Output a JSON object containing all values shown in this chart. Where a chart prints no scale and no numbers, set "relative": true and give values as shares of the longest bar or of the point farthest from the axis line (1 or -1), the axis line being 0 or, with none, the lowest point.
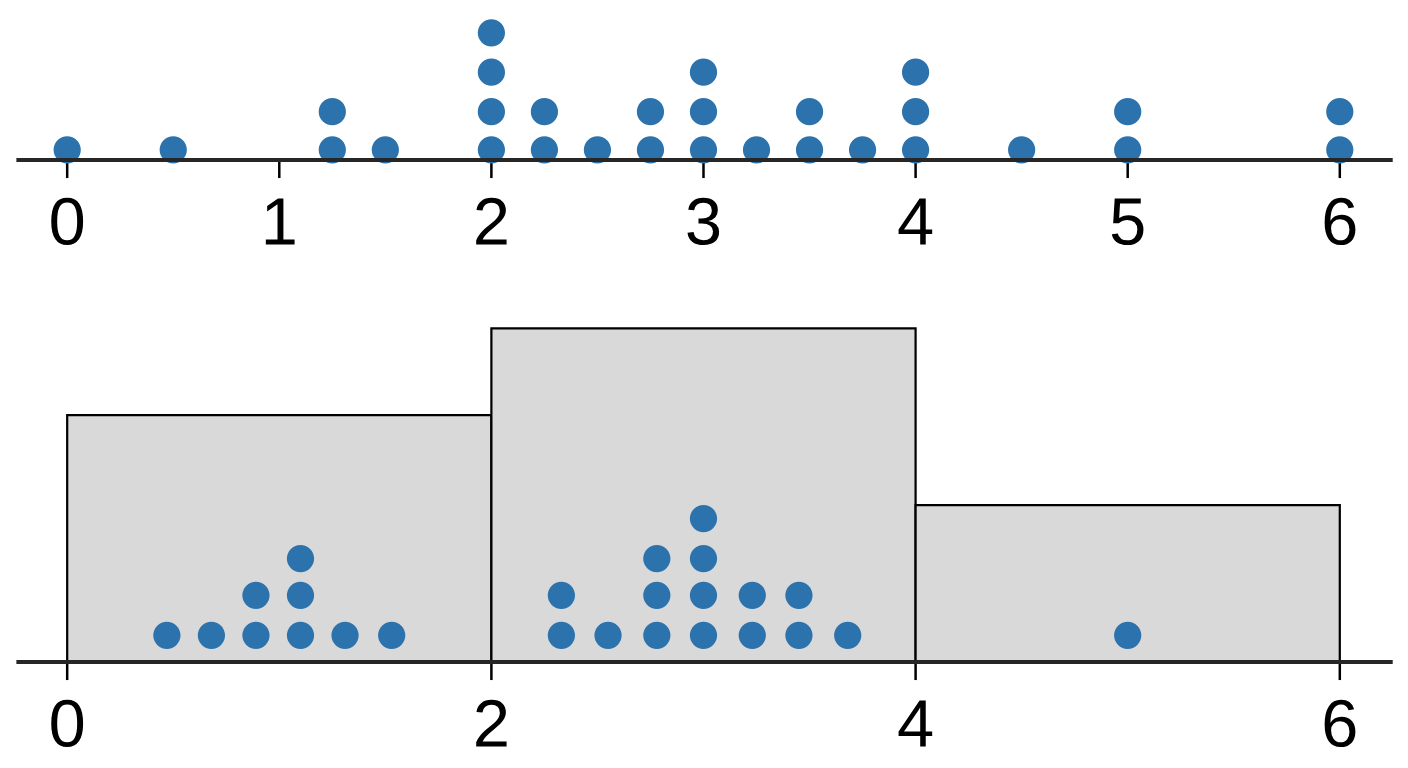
{
  "chart_data": [
    {
      "type": "scatter",
      "relative": true,
      "marker": "circle",
      "color": "#2c73ae",
      "xlim": [
        -0.23,
        6.24
      ],
      "xticks": [
        0,
        1,
        2,
        3,
        4,
        5,
        6
      ],
      "x": [
        0,
        0.5,
        1.25,
        1.25,
        1.5,
        2,
        2,
        2,
        2,
        2.25,
        2.25,
        2.5,
        2.75,
        2.75,
        3,
        3,
        3,
        3.25,
        3.5,
        3.5,
        3.75,
        4,
        4,
        4,
        4.5,
        5,
        5,
        6,
        6
      ],
      "values": [
        0.08,
        0.08,
        0.08,
        0.38,
        0.08,
        0.08,
        0.38,
        0.69,
        1,
        0.08,
        0.38,
        0.08,
        0.08,
        0.38,
        0.08,
        0.38,
        0.69,
        0.08,
        0.08,
        0.38,
        0.08,
        0.08,
        0.38,
        0.69,
        0.08,
        0.08,
        0.38,
        0.08,
        0.38
      ]
    },
    {
      "type": "histogram",
      "relative": true,
      "xlim": [
        -0.23,
        6.24
      ],
      "xticks": [
        0,
        2,
        4,
        6
      ],
      "series": [
        {
          "type": "histogram",
          "bins": [
            0,
            2,
            4,
            6
          ],
          "values": [
            0.74,
            1,
            0.47
          ],
          "color": "#d9d9d9"
        },
        {
          "type": "scatter",
          "marker": "circle",
          "color": "#2c73ae",
          "x": [
            0.47,
            0.68,
            0.89,
            0.89,
            1.1,
            1.1,
            1.1,
            1.31,
            1.53,
            2.33,
            2.33,
            2.55,
            2.78,
            2.78,
            2.78,
            3,
            3,
            3,
            3,
            3.23,
            3.23,
            3.45,
            3.45,
            3.68,
            5
          ],
          "values": [
            0.08,
            0.08,
            0.08,
            0.2,
            0.08,
            0.2,
            0.31,
            0.08,
            0.08,
            0.08,
            0.2,
            0.08,
            0.08,
            0.2,
            0.31,
            0.08,
            0.2,
            0.31,
            0.43,
            0.08,
            0.2,
            0.08,
            0.2,
            0.08,
            0.08
          ]
        }
      ]
    }
  ]
}
